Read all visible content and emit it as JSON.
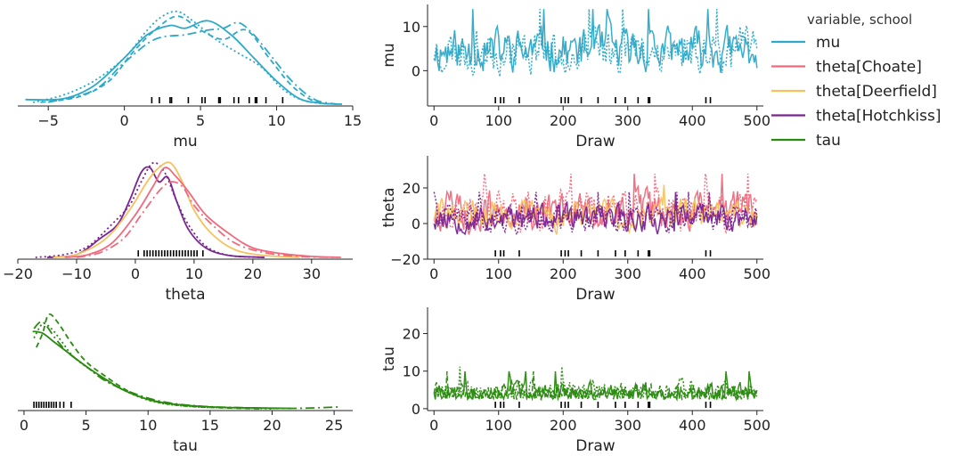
{
  "legend": {
    "title": "variable, school",
    "entries": [
      {
        "name": "mu",
        "color": "#2da9c8"
      },
      {
        "name": "theta[Choate]",
        "color": "#f06a7d"
      },
      {
        "name": "theta[Deerfield]",
        "color": "#f7c25e"
      },
      {
        "name": "theta[Hotchkiss]",
        "color": "#7a2492"
      },
      {
        "name": "tau",
        "color": "#2a8a0f"
      }
    ]
  },
  "chart_data": [
    {
      "id": "mu-density",
      "type": "line",
      "xlabel": "mu",
      "ylabel": "",
      "xlim": [
        -7,
        15
      ],
      "ylim": [
        0,
        1
      ],
      "xticks": [
        -5,
        0,
        5,
        10,
        15
      ],
      "tick_labels": [
        "−5",
        "0",
        "5",
        "10",
        "15"
      ],
      "rug": [
        1.8,
        2.3,
        3.0,
        3.1,
        4.2,
        5.1,
        5.3,
        6.2,
        6.3,
        7.2,
        7.5,
        8.2,
        8.6,
        8.7,
        9.3,
        10.4
      ],
      "series": [
        {
          "color": "#2da9c8",
          "dash": "",
          "x": [
            -6.5,
            -4,
            -2,
            0,
            1.5,
            3,
            4,
            5.5,
            7,
            8.5,
            10,
            11.5,
            13,
            14.3
          ],
          "y": [
            0.05,
            0.06,
            0.2,
            0.5,
            0.75,
            0.85,
            0.82,
            0.9,
            0.75,
            0.5,
            0.25,
            0.06,
            0.01,
            0
          ]
        },
        {
          "color": "#2da9c8",
          "dash": "6,4",
          "x": [
            -5.5,
            -3,
            -1,
            0.5,
            2,
            3.5,
            5,
            6.5,
            8,
            9.5,
            11,
            12.5,
            14
          ],
          "y": [
            0.02,
            0.08,
            0.25,
            0.55,
            0.8,
            0.95,
            0.8,
            0.7,
            0.8,
            0.5,
            0.2,
            0.03,
            0
          ]
        },
        {
          "color": "#2da9c8",
          "dash": "2,3",
          "x": [
            -6,
            -4,
            -2,
            0,
            1.5,
            2.5,
            3.5,
            4.5,
            6,
            7.5,
            9,
            10.5,
            12,
            14
          ],
          "y": [
            0.02,
            0.1,
            0.25,
            0.5,
            0.8,
            0.95,
            1.0,
            0.9,
            0.7,
            0.55,
            0.4,
            0.15,
            0.03,
            0
          ]
        },
        {
          "color": "#2da9c8",
          "dash": "10,4,2,4",
          "x": [
            -5,
            -2,
            0,
            2,
            4,
            5.5,
            6.5,
            7.5,
            8.5,
            9.5,
            11,
            12.5,
            14
          ],
          "y": [
            0.02,
            0.15,
            0.45,
            0.7,
            0.75,
            0.8,
            0.82,
            0.88,
            0.75,
            0.55,
            0.25,
            0.05,
            0
          ]
        }
      ]
    },
    {
      "id": "mu-trace",
      "type": "line",
      "xlabel": "Draw",
      "ylabel": "mu",
      "xlim": [
        -10,
        510
      ],
      "ylim": [
        -8,
        15
      ],
      "xticks": [
        0,
        100,
        200,
        300,
        400,
        500
      ],
      "yticks": [
        0,
        10
      ],
      "tick_labels_x": [
        "0",
        "100",
        "200",
        "300",
        "400",
        "500"
      ],
      "tick_labels_y": [
        "0",
        "10"
      ],
      "rug": [
        95,
        103,
        108,
        132,
        197,
        203,
        208,
        228,
        254,
        281,
        296,
        316,
        332,
        334,
        421,
        428
      ],
      "series": [
        {
          "color": "#2da9c8",
          "dash": "",
          "center": 4.5,
          "amp": 4.5,
          "seed": 11
        },
        {
          "color": "#2da9c8",
          "dash": "2,2",
          "center": 4.5,
          "amp": 4.5,
          "seed": 23
        }
      ]
    },
    {
      "id": "theta-density",
      "type": "line",
      "xlabel": "theta",
      "ylabel": "",
      "xlim": [
        -20,
        37
      ],
      "ylim": [
        0,
        1
      ],
      "xticks": [
        -20,
        -10,
        0,
        10,
        20,
        30
      ],
      "tick_labels": [
        "−20",
        "−10",
        "0",
        "10",
        "20",
        "30"
      ],
      "rug": [
        0.5,
        1.5,
        2,
        2.5,
        3,
        3.5,
        4,
        4.5,
        5,
        5.5,
        6,
        6.5,
        7,
        7.5,
        8,
        8.5,
        9,
        9.5,
        10,
        10.5,
        11.5
      ],
      "series": [
        {
          "color": "#7a2492",
          "dash": "",
          "x": [
            -15,
            -10,
            -6,
            -3,
            -1,
            1,
            2.5,
            4,
            5.5,
            7,
            9,
            12,
            16,
            22
          ],
          "y": [
            0,
            0.03,
            0.2,
            0.35,
            0.6,
            0.9,
            0.95,
            0.8,
            0.85,
            0.6,
            0.3,
            0.1,
            0.02,
            0
          ]
        },
        {
          "color": "#7a2492",
          "dash": "2,3",
          "x": [
            -17,
            -12,
            -8,
            -4,
            -1,
            1,
            3,
            5,
            7,
            9,
            12,
            16,
            22
          ],
          "y": [
            0,
            0.03,
            0.12,
            0.35,
            0.55,
            0.8,
            1.0,
            0.9,
            0.6,
            0.35,
            0.12,
            0.02,
            0
          ]
        },
        {
          "color": "#f7c25e",
          "dash": "",
          "x": [
            -14,
            -10,
            -5,
            -1,
            2,
            4,
            6,
            8,
            10,
            13,
            17,
            22,
            28
          ],
          "y": [
            0,
            0.03,
            0.2,
            0.5,
            0.8,
            0.95,
            1.0,
            0.8,
            0.5,
            0.25,
            0.08,
            0.02,
            0
          ]
        },
        {
          "color": "#f06a7d",
          "dash": "",
          "x": [
            -12,
            -8,
            -4,
            0,
            3,
            5,
            7,
            9,
            12,
            16,
            20,
            25,
            30,
            35
          ],
          "y": [
            0,
            0.03,
            0.15,
            0.45,
            0.75,
            0.95,
            0.85,
            0.7,
            0.45,
            0.25,
            0.1,
            0.04,
            0.01,
            0
          ]
        },
        {
          "color": "#f06a7d",
          "dash": "10,4,2,4",
          "x": [
            -10,
            -6,
            -2,
            1,
            4,
            6,
            8,
            10,
            13,
            17,
            22,
            28,
            34
          ],
          "y": [
            0,
            0.05,
            0.2,
            0.45,
            0.7,
            0.8,
            0.75,
            0.55,
            0.35,
            0.15,
            0.05,
            0.01,
            0
          ]
        }
      ]
    },
    {
      "id": "theta-trace",
      "type": "line",
      "xlabel": "Draw",
      "ylabel": "theta",
      "xlim": [
        -10,
        510
      ],
      "ylim": [
        -20,
        38
      ],
      "xticks": [
        0,
        100,
        200,
        300,
        400,
        500
      ],
      "yticks": [
        -20,
        0,
        20
      ],
      "tick_labels_x": [
        "0",
        "100",
        "200",
        "300",
        "400",
        "500"
      ],
      "tick_labels_y": [
        "−20",
        "0",
        "20"
      ],
      "rug": [
        95,
        103,
        108,
        132,
        197,
        203,
        208,
        228,
        254,
        281,
        296,
        316,
        332,
        334,
        421,
        428
      ],
      "series": [
        {
          "color": "#f06a7d",
          "dash": "",
          "center": 7,
          "amp": 10,
          "seed": 5
        },
        {
          "color": "#f06a7d",
          "dash": "2,2",
          "center": 7,
          "amp": 10,
          "seed": 17
        },
        {
          "color": "#f7c25e",
          "dash": "",
          "center": 5,
          "amp": 8,
          "seed": 29
        },
        {
          "color": "#7a2492",
          "dash": "2,2",
          "center": 3,
          "amp": 7,
          "seed": 41
        },
        {
          "color": "#7a2492",
          "dash": "",
          "center": 3,
          "amp": 7,
          "seed": 53
        }
      ]
    },
    {
      "id": "tau-density",
      "type": "line",
      "xlabel": "tau",
      "ylabel": "",
      "xlim": [
        -0.5,
        26.5
      ],
      "ylim": [
        0,
        1
      ],
      "xticks": [
        0,
        5,
        10,
        15,
        20,
        25
      ],
      "tick_labels": [
        "0",
        "5",
        "10",
        "15",
        "20",
        "25"
      ],
      "rug": [
        0.8,
        1.0,
        1.2,
        1.4,
        1.6,
        1.8,
        2.0,
        2.2,
        2.4,
        2.6,
        2.9,
        3.2,
        3.8
      ],
      "series": [
        {
          "color": "#2a8a0f",
          "dash": "",
          "x": [
            0.7,
            1.5,
            2.5,
            3.5,
            5,
            6.5,
            8,
            10,
            12,
            15,
            18,
            21.5
          ],
          "y": [
            0.82,
            0.8,
            0.7,
            0.6,
            0.45,
            0.32,
            0.2,
            0.1,
            0.05,
            0.02,
            0.01,
            0.005
          ]
        },
        {
          "color": "#2a8a0f",
          "dash": "2,3",
          "x": [
            0.8,
            1.5,
            2.2,
            3,
            4,
            5.5,
            7,
            9,
            11,
            14,
            17,
            20
          ],
          "y": [
            0.75,
            0.9,
            0.85,
            0.72,
            0.55,
            0.4,
            0.27,
            0.14,
            0.06,
            0.02,
            0.01,
            0
          ]
        },
        {
          "color": "#2a8a0f",
          "dash": "6,4",
          "x": [
            1,
            1.5,
            2,
            2.8,
            3.8,
            5,
            6.5,
            8.5,
            10.5,
            13,
            16,
            19
          ],
          "y": [
            0.65,
            0.8,
            1.0,
            0.9,
            0.7,
            0.5,
            0.35,
            0.18,
            0.08,
            0.03,
            0.01,
            0
          ]
        },
        {
          "color": "#2a8a0f",
          "dash": "10,4,2,4",
          "x": [
            0.8,
            1.5,
            2.5,
            3.5,
            5,
            6.5,
            8.5,
            11,
            14,
            18,
            22,
            25.5
          ],
          "y": [
            0.85,
            0.92,
            0.75,
            0.6,
            0.45,
            0.3,
            0.18,
            0.08,
            0.03,
            0.01,
            0.005,
            0.02
          ]
        }
      ]
    },
    {
      "id": "tau-trace",
      "type": "line",
      "xlabel": "Draw",
      "ylabel": "tau",
      "xlim": [
        -10,
        510
      ],
      "ylim": [
        -0.5,
        27
      ],
      "xticks": [
        0,
        100,
        200,
        300,
        400,
        500
      ],
      "yticks": [
        0,
        10,
        20
      ],
      "tick_labels_x": [
        "0",
        "100",
        "200",
        "300",
        "400",
        "500"
      ],
      "tick_labels_y": [
        "0",
        "10",
        "20"
      ],
      "rug": [
        95,
        103,
        108,
        132,
        197,
        203,
        208,
        228,
        254,
        281,
        296,
        316,
        332,
        334,
        421,
        428
      ],
      "series": [
        {
          "color": "#2a8a0f",
          "dash": "",
          "center": 4,
          "amp": 4,
          "seed": 7,
          "positive": true
        },
        {
          "color": "#2a8a0f",
          "dash": "2,2",
          "center": 4.5,
          "amp": 4.5,
          "seed": 19,
          "positive": true
        },
        {
          "color": "#2a8a0f",
          "dash": "6,3",
          "center": 4,
          "amp": 4,
          "seed": 31,
          "positive": true
        }
      ]
    }
  ]
}
